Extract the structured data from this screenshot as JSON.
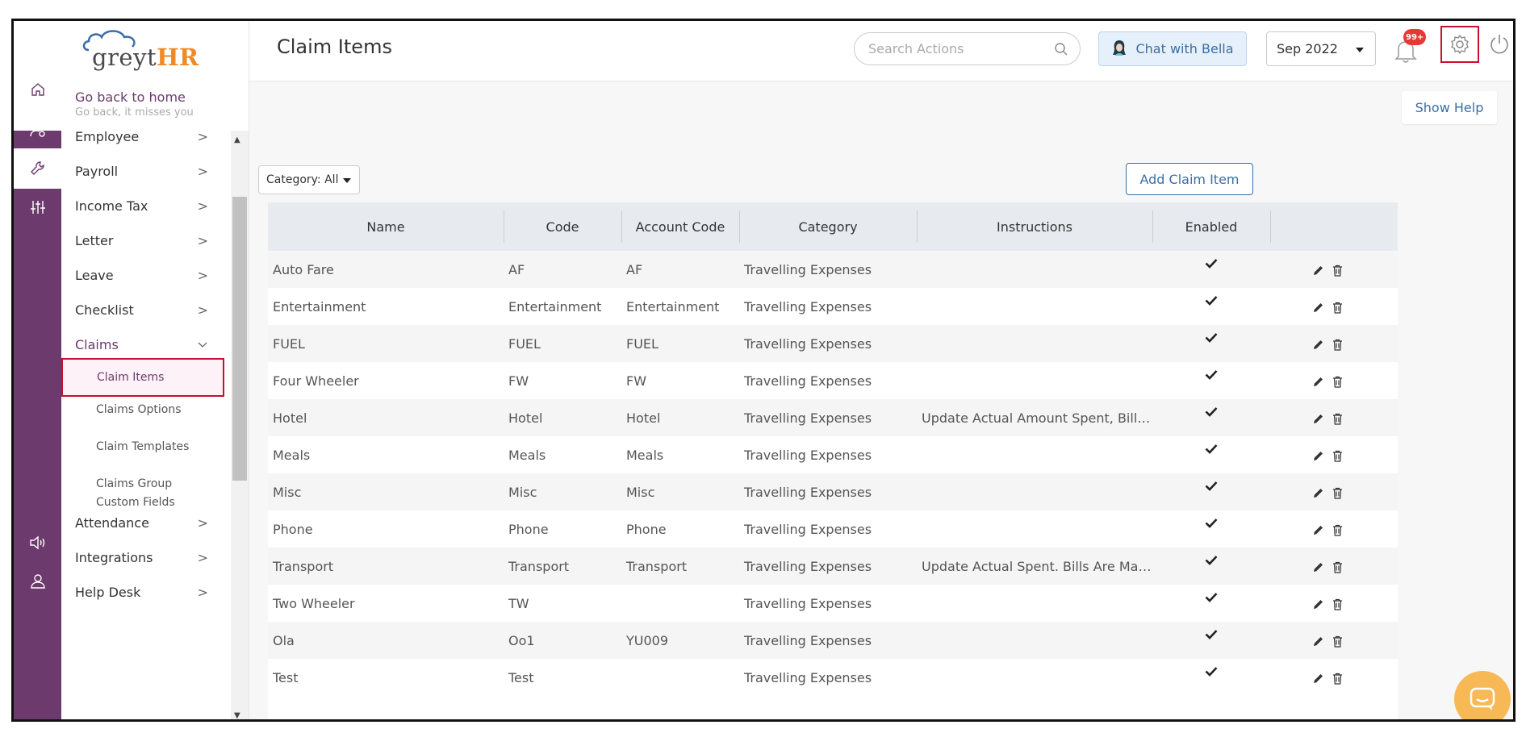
{
  "brand": {
    "logo_main": "greyt",
    "logo_accent": "HR"
  },
  "home_link": {
    "title": "Go back to home",
    "subtitle": "Go back, it misses you"
  },
  "header": {
    "title": "Claim Items",
    "search_placeholder": "Search Actions",
    "chat_label": "Chat with Bella",
    "month": "Sep 2022",
    "notification_badge": "99+"
  },
  "sidenav": {
    "items": [
      {
        "label": "Employee"
      },
      {
        "label": "Payroll"
      },
      {
        "label": "Income Tax"
      },
      {
        "label": "Letter"
      },
      {
        "label": "Leave"
      },
      {
        "label": "Checklist"
      },
      {
        "label": "Claims"
      },
      {
        "label": "Attendance"
      },
      {
        "label": "Integrations"
      },
      {
        "label": "Help Desk"
      }
    ],
    "claims_sub": [
      {
        "label": "Claim Items"
      },
      {
        "label": "Claims Options"
      },
      {
        "label": "Claim Templates"
      },
      {
        "label": "Claims Group Custom Fields"
      }
    ]
  },
  "toolbar": {
    "show_help": "Show Help",
    "category_filter": "Category: All",
    "add_button": "Add Claim Item"
  },
  "table": {
    "columns": [
      "Name",
      "Code",
      "Account Code",
      "Category",
      "Instructions",
      "Enabled",
      ""
    ],
    "rows": [
      {
        "name": "Auto Fare",
        "code": "AF",
        "account_code": "AF",
        "category": "Travelling Expenses",
        "instructions": ""
      },
      {
        "name": "Entertainment",
        "code": "Entertainment",
        "account_code": "Entertainment",
        "category": "Travelling Expenses",
        "instructions": ""
      },
      {
        "name": "FUEL",
        "code": "FUEL",
        "account_code": "FUEL",
        "category": "Travelling Expenses",
        "instructions": ""
      },
      {
        "name": "Four Wheeler",
        "code": "FW",
        "account_code": "FW",
        "category": "Travelling Expenses",
        "instructions": ""
      },
      {
        "name": "Hotel",
        "code": "Hotel",
        "account_code": "Hotel",
        "category": "Travelling Expenses",
        "instructions": "Update Actual Amount Spent, Bills ..."
      },
      {
        "name": "Meals",
        "code": "Meals",
        "account_code": "Meals",
        "category": "Travelling Expenses",
        "instructions": ""
      },
      {
        "name": "Misc",
        "code": "Misc",
        "account_code": "Misc",
        "category": "Travelling Expenses",
        "instructions": ""
      },
      {
        "name": "Phone",
        "code": "Phone",
        "account_code": "Phone",
        "category": "Travelling Expenses",
        "instructions": ""
      },
      {
        "name": "Transport",
        "code": "Transport",
        "account_code": "Transport",
        "category": "Travelling Expenses",
        "instructions": "Update Actual Spent. Bills Are Man..."
      },
      {
        "name": "Two Wheeler",
        "code": "TW",
        "account_code": "",
        "category": "Travelling Expenses",
        "instructions": ""
      },
      {
        "name": "Ola",
        "code": "Oo1",
        "account_code": "YU009",
        "category": "Travelling Expenses",
        "instructions": ""
      },
      {
        "name": "Test",
        "code": "Test",
        "account_code": "",
        "category": "Travelling Expenses",
        "instructions": ""
      }
    ]
  },
  "icons": {
    "rail": [
      "home-icon",
      "employee-settings-icon",
      "wrench-icon",
      "sliders-icon",
      "announcement-icon",
      "user-icon"
    ],
    "enabled": "checkmark-icon",
    "row_actions": [
      "edit-icon",
      "delete-icon"
    ]
  },
  "colors": {
    "brand_purple": "#6c3a6c",
    "accent_orange": "#f08a24",
    "link_blue": "#3b6ea5",
    "highlight_red": "#c8102e",
    "chat_widget": "#f7b955"
  }
}
